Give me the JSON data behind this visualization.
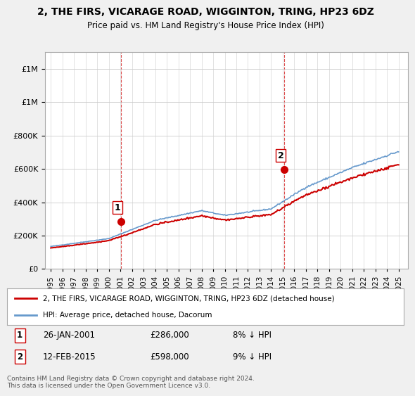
{
  "title": "2, THE FIRS, VICARAGE ROAD, WIGGINTON, TRING, HP23 6DZ",
  "subtitle": "Price paid vs. HM Land Registry's House Price Index (HPI)",
  "ylim": [
    0,
    1300000
  ],
  "yticks": [
    0,
    200000,
    400000,
    600000,
    800000,
    1000000,
    1200000
  ],
  "xlim_min": 1994.5,
  "xlim_max": 2025.8,
  "sale1_date": 2001.07,
  "sale1_price": 286000,
  "sale1_label": "1",
  "sale2_date": 2015.12,
  "sale2_price": 598000,
  "sale2_label": "2",
  "legend_line1": "2, THE FIRS, VICARAGE ROAD, WIGGINTON, TRING, HP23 6DZ (detached house)",
  "legend_line2": "HPI: Average price, detached house, Dacorum",
  "footer": "Contains HM Land Registry data © Crown copyright and database right 2024.\nThis data is licensed under the Open Government Licence v3.0.",
  "line_red": "#cc0000",
  "line_blue": "#6699cc",
  "bg_color": "#f0f0f0",
  "plot_bg": "#ffffff"
}
